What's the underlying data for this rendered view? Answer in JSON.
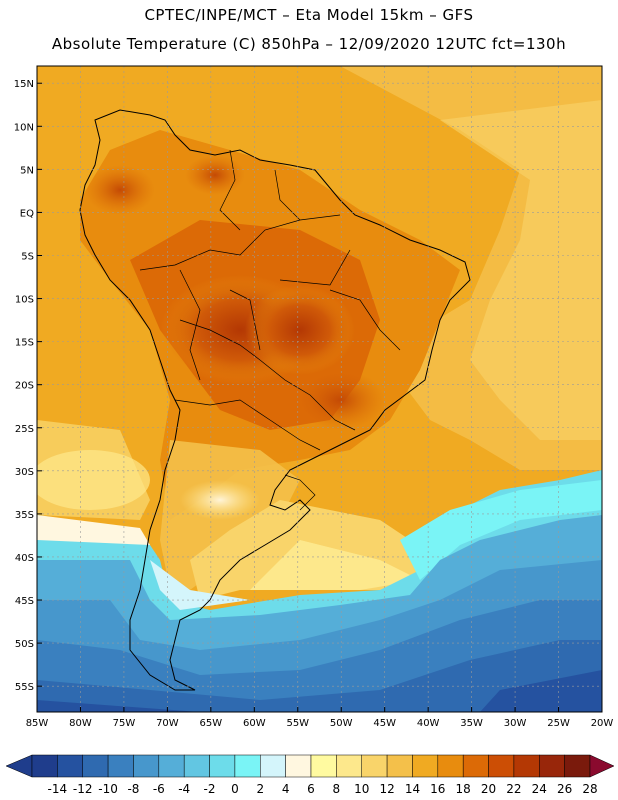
{
  "header": {
    "line1": "CPTEC/INPE/MCT –  Eta Model 15km – GFS",
    "line2": "Absolute Temperature (C) 850hPa – 12/09/2020 12UTC fct=130h"
  },
  "map": {
    "lon_range": [
      -85,
      -20
    ],
    "lat_range": [
      -58,
      17
    ],
    "lon_ticks": [
      "85W",
      "80W",
      "75W",
      "70W",
      "65W",
      "60W",
      "55W",
      "50W",
      "45W",
      "40W",
      "35W",
      "30W",
      "25W",
      "20W"
    ],
    "lat_ticks": [
      "15N",
      "10N",
      "5N",
      "EQ",
      "5S",
      "10S",
      "15S",
      "20S",
      "25S",
      "30S",
      "35S",
      "40S",
      "45S",
      "50S",
      "55S"
    ],
    "grid": true
  },
  "colorbar": {
    "labels": [
      "-14",
      "-12",
      "-10",
      "-8",
      "-6",
      "-4",
      "-2",
      "0",
      "2",
      "4",
      "6",
      "8",
      "10",
      "12",
      "14",
      "16",
      "18",
      "20",
      "22",
      "24",
      "26",
      "28"
    ],
    "colors": [
      "#1f3d8c",
      "#2552a0",
      "#2f6ab0",
      "#3a80bf",
      "#4797cc",
      "#55aed8",
      "#62c6e2",
      "#6ddcea",
      "#7af4f6",
      "#d4f5fb",
      "#fff7e0",
      "#fffaa0",
      "#fde88c",
      "#f9d46a",
      "#f4c04a",
      "#f0aa22",
      "#e88c0e",
      "#dc6a06",
      "#cc4e05",
      "#b43804",
      "#98260a",
      "#7a1a0c",
      "#8a0a2e"
    ]
  }
}
